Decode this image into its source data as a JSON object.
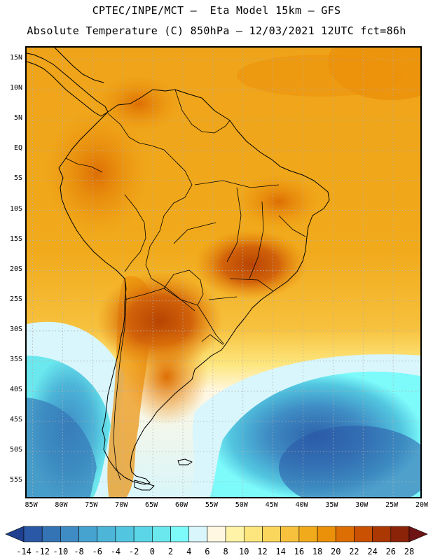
{
  "title": {
    "line1": "CPTEC/INPE/MCT –  Eta Model 15km – GFS",
    "line2": "Absolute Temperature (C) 850hPa – 12/03/2021 12UTC fct=86h"
  },
  "map": {
    "lat_labels": [
      "15N",
      "10N",
      "5N",
      "EQ",
      "5S",
      "10S",
      "15S",
      "20S",
      "25S",
      "30S",
      "35S",
      "40S",
      "45S",
      "50S",
      "55S"
    ],
    "lon_labels": [
      "85W",
      "80W",
      "75W",
      "70W",
      "65W",
      "60W",
      "55W",
      "50W",
      "45W",
      "40W",
      "35W",
      "30W",
      "25W",
      "20W"
    ],
    "extent": {
      "lon_min": -86,
      "lon_max": -20,
      "lat_min": -58,
      "lat_max": 17
    },
    "coastline_color": "#000000",
    "grid_color": "#b0b0b0"
  },
  "colorbar": {
    "levels": [
      "-14",
      "-12",
      "-10",
      "-8",
      "-6",
      "-4",
      "-2",
      "0",
      "2",
      "4",
      "6",
      "8",
      "10",
      "12",
      "14",
      "16",
      "18",
      "20",
      "22",
      "24",
      "26",
      "28"
    ],
    "colors": [
      "#1f3f8f",
      "#2a58a6",
      "#3474b5",
      "#3f8cc4",
      "#46a2cf",
      "#4cb5d8",
      "#52c6e0",
      "#5ad6e8",
      "#6ae8ee",
      "#7dfbfb",
      "#d8f6fb",
      "#fff7e2",
      "#fef3a6",
      "#fde67d",
      "#fbd65c",
      "#f7c13d",
      "#f1aa1b",
      "#eb9009",
      "#dd6e04",
      "#c95101",
      "#ab3702",
      "#8b2308",
      "#6e1414"
    ]
  }
}
